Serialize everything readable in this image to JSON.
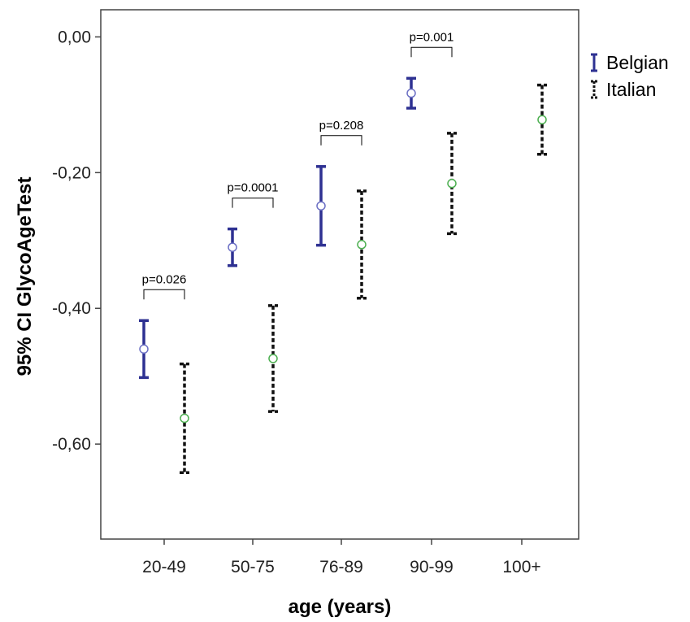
{
  "chart_data": {
    "type": "errorbar",
    "xlabel": "age (years)",
    "ylabel": "95% CI GlycoAgeTest",
    "ylim": [
      -0.74,
      0.04
    ],
    "yticks": [
      0.0,
      -0.2,
      -0.4,
      -0.6
    ],
    "ytick_labels": [
      "0,00",
      "-0,20",
      "-0,40",
      "-0,60"
    ],
    "categories": [
      "20-49",
      "50-75",
      "76-89",
      "90-99",
      "100+"
    ],
    "legend_position": "top-right",
    "series": [
      {
        "name": "Belgian",
        "color": "#2e3192",
        "marker_color": "#6b6fc4",
        "style": "solid",
        "points": [
          {
            "category": "20-49",
            "mean": -0.46,
            "lower": -0.502,
            "upper": -0.418
          },
          {
            "category": "50-75",
            "mean": -0.31,
            "lower": -0.337,
            "upper": -0.283
          },
          {
            "category": "76-89",
            "mean": -0.249,
            "lower": -0.307,
            "upper": -0.191
          },
          {
            "category": "90-99",
            "mean": -0.083,
            "lower": -0.105,
            "upper": -0.061
          }
        ]
      },
      {
        "name": "Italian",
        "color": "#111111",
        "marker_color": "#4caf50",
        "style": "dashed",
        "points": [
          {
            "category": "20-49",
            "mean": -0.562,
            "lower": -0.642,
            "upper": -0.482
          },
          {
            "category": "50-75",
            "mean": -0.474,
            "lower": -0.552,
            "upper": -0.396
          },
          {
            "category": "76-89",
            "mean": -0.306,
            "lower": -0.385,
            "upper": -0.227
          },
          {
            "category": "90-99",
            "mean": -0.216,
            "lower": -0.29,
            "upper": -0.142
          },
          {
            "category": "100+",
            "mean": -0.122,
            "lower": -0.173,
            "upper": -0.071
          }
        ]
      }
    ],
    "annotations": [
      {
        "category": "20-49",
        "text": "p=0.026"
      },
      {
        "category": "50-75",
        "text": "p=0.0001"
      },
      {
        "category": "76-89",
        "text": "p=0.208"
      },
      {
        "category": "90-99",
        "text": "p=0.001"
      }
    ]
  }
}
